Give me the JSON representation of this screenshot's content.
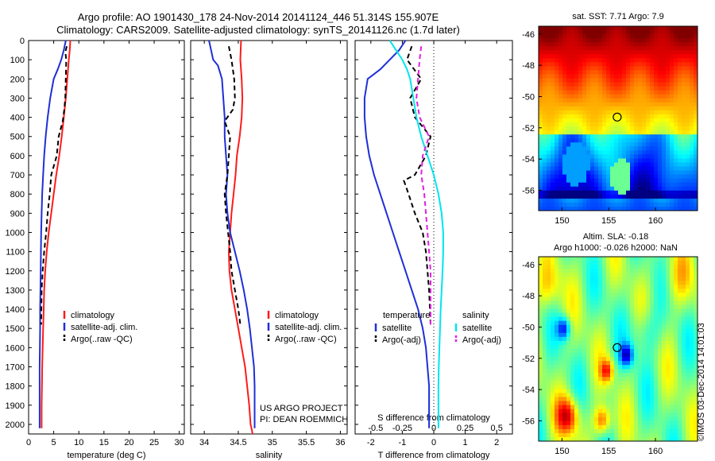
{
  "header": {
    "title_line1": "Argo profile: AO 1901430_178 24-Nov-2014 20141124_446 51.314S 155.907E",
    "title_line2": "Climatology: CARS2009. Satellite-adjusted climatology: synTS_20141126.nc (1.7d later)"
  },
  "colors": {
    "climatology": "#ff1a1a",
    "satellite": "#1f2fd6",
    "argo": "#000000",
    "satellite_s": "#00e5ee",
    "argo_s": "#e020e0"
  },
  "chart_data": [
    {
      "id": "temperature",
      "type": "line",
      "xlabel": "temperature (deg C)",
      "xlim": [
        0,
        31
      ],
      "xticks": [
        "0",
        "5",
        "10",
        "15",
        "20",
        "25",
        "30"
      ],
      "xtick_values": [
        0,
        5,
        10,
        15,
        20,
        25,
        30
      ],
      "ylim": [
        2050,
        0
      ],
      "yticks": [
        "0",
        "100",
        "200",
        "300",
        "400",
        "500",
        "600",
        "700",
        "800",
        "900",
        "1000",
        "1100",
        "1200",
        "1300",
        "1400",
        "1500",
        "1600",
        "1700",
        "1800",
        "1900",
        "2000"
      ],
      "ytick_values": [
        0,
        100,
        200,
        300,
        400,
        500,
        600,
        700,
        800,
        900,
        1000,
        1100,
        1200,
        1300,
        1400,
        1500,
        1600,
        1700,
        1800,
        1900,
        2000
      ],
      "legend": [
        "climatology",
        "satellite-adj. clim.",
        "Argo(..raw -QC)"
      ],
      "series": [
        {
          "name": "climatology",
          "color_key": "climatology",
          "dash": "solid",
          "x": [
            8.3,
            8.2,
            8.0,
            7.7,
            7.4,
            7.0,
            6.6,
            6.1,
            5.5,
            5.0,
            4.5,
            4.0,
            3.6,
            3.3,
            3.1,
            3.0,
            2.9,
            2.8,
            2.7,
            2.65,
            2.6,
            2.6
          ],
          "y": [
            0,
            50,
            100,
            200,
            300,
            400,
            500,
            600,
            700,
            800,
            900,
            1000,
            1100,
            1200,
            1300,
            1400,
            1500,
            1600,
            1700,
            1800,
            1900,
            2020
          ]
        },
        {
          "name": "satellite-adj. clim.",
          "color_key": "satellite",
          "dash": "solid",
          "x": [
            7.4,
            7.0,
            6.5,
            5.8,
            5.0,
            4.3,
            3.8,
            3.4,
            3.1,
            2.9,
            2.7,
            2.6,
            2.5,
            2.45,
            2.4,
            2.35,
            2.3,
            2.3,
            2.25,
            2.2,
            2.2,
            2.2
          ],
          "y": [
            0,
            50,
            100,
            150,
            200,
            300,
            400,
            500,
            600,
            700,
            800,
            900,
            1000,
            1100,
            1200,
            1300,
            1400,
            1500,
            1600,
            1700,
            1800,
            2020
          ]
        },
        {
          "name": "Argo(..raw -QC)",
          "color_key": "argo",
          "dash": "dashed",
          "x": [
            7.6,
            7.3,
            7.5,
            7.4,
            7.3,
            7.1,
            6.8,
            6.0,
            5.6,
            4.5,
            4.2,
            3.8,
            3.5,
            3.1,
            2.8,
            2.6,
            2.55,
            2.5
          ],
          "y": [
            30,
            60,
            100,
            200,
            300,
            360,
            420,
            500,
            600,
            700,
            800,
            900,
            1000,
            1100,
            1200,
            1300,
            1400,
            1480
          ]
        }
      ]
    },
    {
      "id": "salinity",
      "type": "line",
      "xlabel": "salinity",
      "xlim": [
        33.8,
        36.1
      ],
      "xticks": [
        "34",
        "34.5",
        "35",
        "35.5",
        "36"
      ],
      "xtick_values": [
        34,
        34.5,
        35,
        35.5,
        36
      ],
      "ylim": [
        2050,
        0
      ],
      "legend": [
        "climatology",
        "satellite-adj. clim.",
        "Argo(..raw -QC)"
      ],
      "series": [
        {
          "name": "climatology",
          "color_key": "climatology",
          "dash": "solid",
          "x": [
            34.54,
            34.53,
            34.55,
            34.56,
            34.55,
            34.52,
            34.48,
            34.46,
            34.43,
            34.4,
            34.38,
            34.36,
            34.37,
            34.4,
            34.45,
            34.5,
            34.55,
            34.6,
            34.63,
            34.66,
            34.68,
            34.7,
            34.71
          ],
          "y": [
            0,
            100,
            200,
            300,
            400,
            500,
            600,
            700,
            800,
            900,
            1000,
            1100,
            1200,
            1300,
            1400,
            1500,
            1600,
            1700,
            1800,
            1900,
            2000,
            2030,
            2050
          ]
        },
        {
          "name": "satellite-adj. clim.",
          "color_key": "satellite",
          "dash": "solid",
          "x": [
            34.07,
            34.13,
            34.2,
            34.26,
            34.28,
            34.3,
            34.3,
            34.32,
            34.34,
            34.32,
            34.34,
            34.38,
            34.45,
            34.52,
            34.58,
            34.63,
            34.67,
            34.7,
            34.73,
            34.74,
            34.74
          ],
          "y": [
            0,
            100,
            130,
            200,
            300,
            400,
            500,
            600,
            700,
            800,
            900,
            1000,
            1100,
            1200,
            1300,
            1400,
            1500,
            1600,
            1700,
            1800,
            2020
          ]
        },
        {
          "name": "Argo(..raw -QC)",
          "color_key": "argo",
          "dash": "dashed",
          "x": [
            34.36,
            34.4,
            34.44,
            34.45,
            34.42,
            34.3,
            34.38,
            34.36,
            34.34,
            34.3,
            34.32,
            34.35,
            34.38,
            34.4,
            34.45,
            34.5,
            34.53
          ],
          "y": [
            30,
            100,
            200,
            300,
            360,
            420,
            500,
            600,
            700,
            800,
            900,
            1000,
            1100,
            1200,
            1300,
            1400,
            1480
          ]
        }
      ],
      "annotation_line1": "US ARGO PROJECT",
      "annotation_line2": "PI: DEAN ROEMMICH"
    },
    {
      "id": "difference",
      "type": "line",
      "xlabel": "T difference from climatology",
      "x2label": "S difference from climatology",
      "xlim": [
        -2.5,
        2.5
      ],
      "xticks": [
        "-2",
        "-1",
        "0",
        "1",
        "2"
      ],
      "xtick_values": [
        -2,
        -1,
        0,
        1,
        2
      ],
      "x2ticks": [
        "-0.5",
        "-0.25",
        "0",
        "0.25",
        "0.5"
      ],
      "ylim": [
        2050,
        0
      ],
      "legend_left_title": "temperature",
      "legend_right_title": "salinity",
      "legend_left": [
        "satellite",
        "Argo(-adj)"
      ],
      "legend_right": [
        "satellite",
        "Argo(-adj)"
      ],
      "series": [
        {
          "name": "satellite",
          "color_key": "satellite",
          "dash": "solid",
          "x": [
            -0.9,
            -1.1,
            -1.4,
            -1.7,
            -2.1,
            -2.2,
            -2.2,
            -2.15,
            -2.05,
            -1.9,
            -1.7,
            -1.5,
            -1.3,
            -1.1,
            -0.9,
            -0.7,
            -0.5,
            -0.35,
            -0.25,
            -0.2,
            -0.15,
            -0.15
          ],
          "y": [
            0,
            50,
            100,
            150,
            200,
            300,
            400,
            500,
            600,
            700,
            800,
            900,
            1000,
            1100,
            1200,
            1300,
            1400,
            1500,
            1600,
            1700,
            1800,
            2020
          ]
        },
        {
          "name": "Argo(-adj)",
          "color_key": "argo",
          "dash": "dashed",
          "x": [
            -0.7,
            -0.85,
            -0.4,
            -0.75,
            -0.6,
            -0.1,
            -0.25,
            -0.6,
            -0.95,
            -0.8,
            -0.6,
            -0.35,
            -0.25,
            -0.2,
            -0.15,
            -0.1
          ],
          "y": [
            30,
            100,
            200,
            300,
            400,
            500,
            600,
            700,
            730,
            800,
            900,
            1000,
            1100,
            1200,
            1300,
            1480
          ]
        },
        {
          "name": "satellite (salinity)",
          "color_key": "satellite_s",
          "dash": "solid",
          "x": [
            -1.4,
            -1.2,
            -1.0,
            -0.85,
            -0.75,
            -0.65,
            -0.55,
            -0.4,
            -0.2,
            0.0,
            0.15,
            0.25,
            0.3,
            0.3,
            0.28,
            0.25,
            0.22,
            0.2,
            0.18,
            0.16,
            0.15,
            0.15
          ],
          "y": [
            0,
            50,
            100,
            150,
            200,
            300,
            400,
            500,
            600,
            700,
            800,
            900,
            1000,
            1100,
            1200,
            1300,
            1400,
            1500,
            1600,
            1700,
            1800,
            2020
          ]
        },
        {
          "name": "Argo(-adj) (salinity)",
          "color_key": "argo_s",
          "dash": "dashed",
          "x": [
            -0.4,
            -0.45,
            -0.5,
            -0.55,
            -0.45,
            -0.15,
            -0.35,
            -0.4,
            -0.3,
            -0.25,
            -0.2,
            -0.15,
            -0.1,
            -0.1,
            -0.1
          ],
          "y": [
            30,
            100,
            200,
            300,
            400,
            500,
            600,
            700,
            800,
            900,
            1000,
            1100,
            1200,
            1300,
            1480
          ]
        }
      ]
    },
    {
      "id": "sst-map",
      "type": "heatmap",
      "title": "sat. SST: 7.71  Argo: 7.9",
      "xticks": [
        "150",
        "155",
        "160"
      ],
      "yticks": [
        "-46",
        "-48",
        "-50",
        "-52",
        "-54",
        "-56"
      ],
      "xlim": [
        147.5,
        164.5
      ],
      "ylim": [
        -57.3,
        -45.5
      ],
      "marker": {
        "lon": 155.907,
        "lat": -51.314
      }
    },
    {
      "id": "sla-map",
      "type": "heatmap",
      "title_line1": "Altim. SLA: -0.18",
      "title_line2": "Argo h1000: -0.026 h2000: NaN",
      "xticks": [
        "150",
        "155",
        "160"
      ],
      "yticks": [
        "-46",
        "-48",
        "-50",
        "-52",
        "-54",
        "-56"
      ],
      "xlim": [
        147.5,
        164.5
      ],
      "ylim": [
        -57.3,
        -45.5
      ],
      "marker": {
        "lon": 155.907,
        "lat": -51.314
      }
    }
  ],
  "credit": "©IMOS 03-Dec-2014 14:01:03"
}
